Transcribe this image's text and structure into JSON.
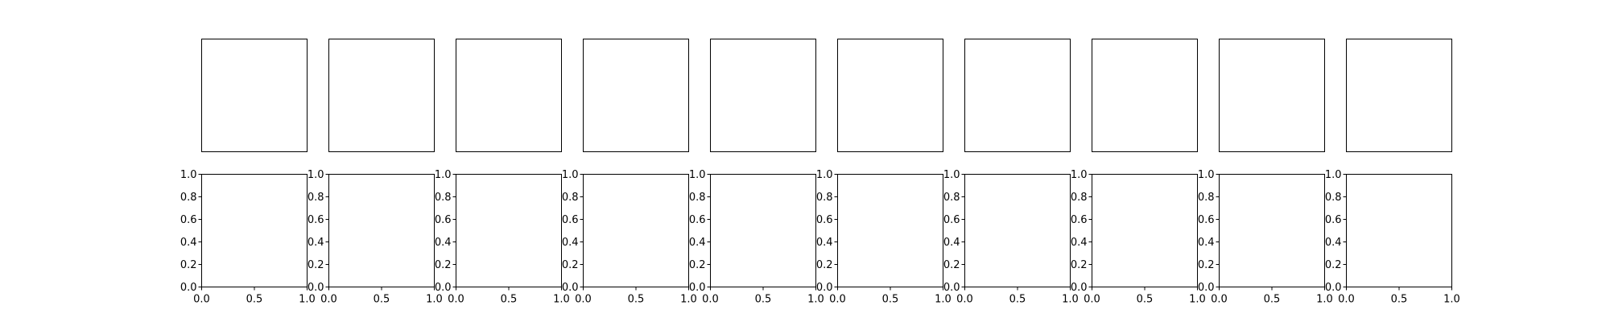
{
  "chart_data": {
    "type": "grid of empty axes",
    "rows": [
      {
        "panels": 10,
        "axes_visible": false,
        "frame": true,
        "series": []
      },
      {
        "panels": 10,
        "axes_visible": true,
        "frame": true,
        "xlim": [
          0.0,
          1.0
        ],
        "ylim": [
          0.0,
          1.0
        ],
        "x_ticks": [
          "0.0",
          "0.5",
          "1.0"
        ],
        "y_ticks": [
          "0.0",
          "0.2",
          "0.4",
          "0.6",
          "0.8",
          "1.0"
        ],
        "series": []
      }
    ],
    "grid": false,
    "legend": "none"
  },
  "colors": {
    "frame": "#000000",
    "background": "#ffffff"
  }
}
